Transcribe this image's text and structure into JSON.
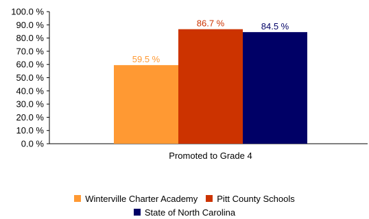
{
  "chart_data": {
    "type": "bar",
    "categories": [
      "Promoted to Grade 4"
    ],
    "series": [
      {
        "name": "Winterville Charter Academy",
        "values": [
          59.5
        ],
        "label": "59.5 %",
        "color": "#FF9933"
      },
      {
        "name": "Pitt County Schools",
        "values": [
          86.7
        ],
        "label": "86.7 %",
        "color": "#CC3300"
      },
      {
        "name": "State of North Carolina",
        "values": [
          84.5
        ],
        "label": "84.5 %",
        "color": "#000066"
      }
    ],
    "ylim": [
      0,
      100
    ],
    "yticks": [
      "0.0 %",
      "10.0 %",
      "20.0 %",
      "30.0 %",
      "40.0 %",
      "50.0 %",
      "60.0 %",
      "70.0 %",
      "80.0 %",
      "90.0 %",
      "100.0 %"
    ],
    "grid": false,
    "legend_position": "bottom",
    "title": "",
    "xlabel": "",
    "ylabel": ""
  }
}
